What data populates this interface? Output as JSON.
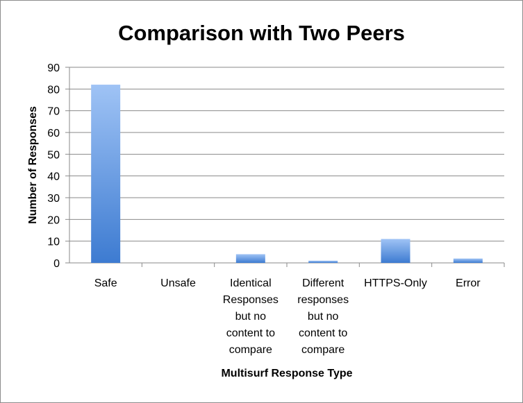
{
  "chart_data": {
    "type": "bar",
    "title": "Comparison with Two Peers",
    "xlabel": "Multisurf Response Type",
    "ylabel": "Number of Responses",
    "categories": [
      [
        "Safe"
      ],
      [
        "Unsafe"
      ],
      [
        "Identical",
        "Responses",
        "but no",
        "content to",
        "compare"
      ],
      [
        "Different",
        "responses",
        "but no",
        "content to",
        "compare"
      ],
      [
        "HTTPS-Only"
      ],
      [
        "Error"
      ]
    ],
    "values": [
      82,
      0,
      4,
      1,
      11,
      2
    ],
    "ylim": [
      0,
      90
    ],
    "yticks": [
      "0",
      "10",
      "20",
      "30",
      "40",
      "50",
      "60",
      "70",
      "80",
      "90"
    ],
    "grid": true,
    "legend": "none",
    "colors": {
      "bar_top": "#9fc3f5",
      "bar_bottom": "#3d7bd1",
      "grid": "#8a8a8a",
      "axis": "#8a8a8a"
    }
  }
}
